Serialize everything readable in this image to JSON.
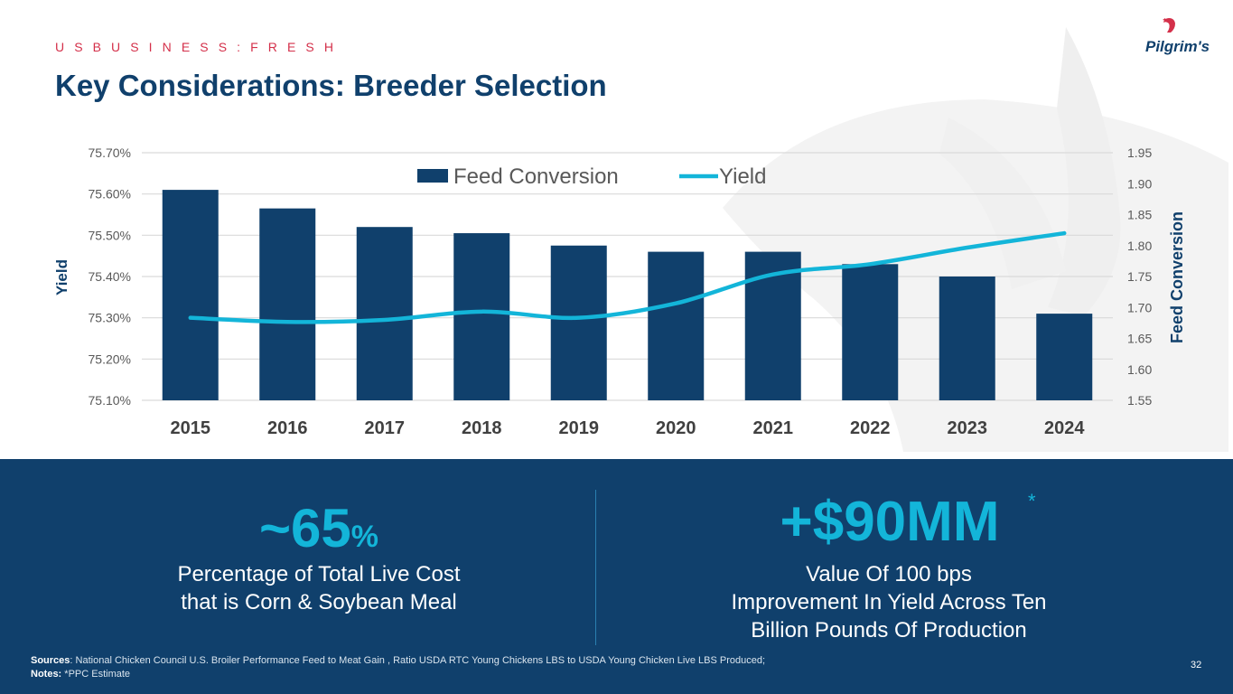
{
  "header": {
    "eyebrow": "U S   B U S I N E S S :   F R E S H",
    "title": "Key Considerations: Breeder Selection"
  },
  "logo": {
    "text": "Pilgrim's",
    "icon": "rooster-icon"
  },
  "chart_data": {
    "type": "bar+line",
    "categories": [
      "2015",
      "2016",
      "2017",
      "2018",
      "2019",
      "2020",
      "2021",
      "2022",
      "2023",
      "2024"
    ],
    "series": [
      {
        "name": "Feed Conversion",
        "kind": "bar",
        "axis": "right",
        "values": [
          1.89,
          1.86,
          1.83,
          1.82,
          1.8,
          1.79,
          1.79,
          1.77,
          1.75,
          1.69
        ]
      },
      {
        "name": "Yield",
        "kind": "line",
        "axis": "left",
        "values": [
          75.3,
          75.29,
          75.295,
          75.315,
          75.3,
          75.335,
          75.405,
          75.43,
          75.47,
          75.505
        ]
      }
    ],
    "left_axis": {
      "label": "Yield",
      "min": 75.1,
      "max": 75.7,
      "ticks": [
        "75.70%",
        "75.60%",
        "75.50%",
        "75.40%",
        "75.30%",
        "75.20%",
        "75.10%"
      ]
    },
    "right_axis": {
      "label": "Feed Conversion",
      "min": 1.55,
      "max": 1.95,
      "ticks": [
        "1.95",
        "1.90",
        "1.85",
        "1.80",
        "1.75",
        "1.70",
        "1.65",
        "1.60",
        "1.55"
      ]
    },
    "legend": {
      "position": "top-center",
      "items": [
        "Feed Conversion",
        "Yield"
      ]
    },
    "grid": true,
    "colors": {
      "bar": "#10406c",
      "line": "#13b5d9"
    }
  },
  "stats": {
    "left": {
      "value": "~65",
      "unit": "%",
      "label_line1": "Percentage of Total Live Cost",
      "label_line2": "that is Corn & Soybean Meal"
    },
    "right": {
      "value": "+$90MM",
      "marker": "*",
      "label_line1": "Value Of 100 bps",
      "label_line2": "Improvement In Yield Across Ten",
      "label_line3": "Billion Pounds Of Production"
    }
  },
  "footer": {
    "sources_label": "Sources",
    "sources_text": ": National Chicken Council U.S. Broiler Performance Feed to Meat Gain , Ratio USDA RTC Young Chickens LBS to USDA Young Chicken Live LBS Produced;",
    "notes_label": "Notes:",
    "notes_text": " *PPC Estimate",
    "page_number": "32"
  }
}
